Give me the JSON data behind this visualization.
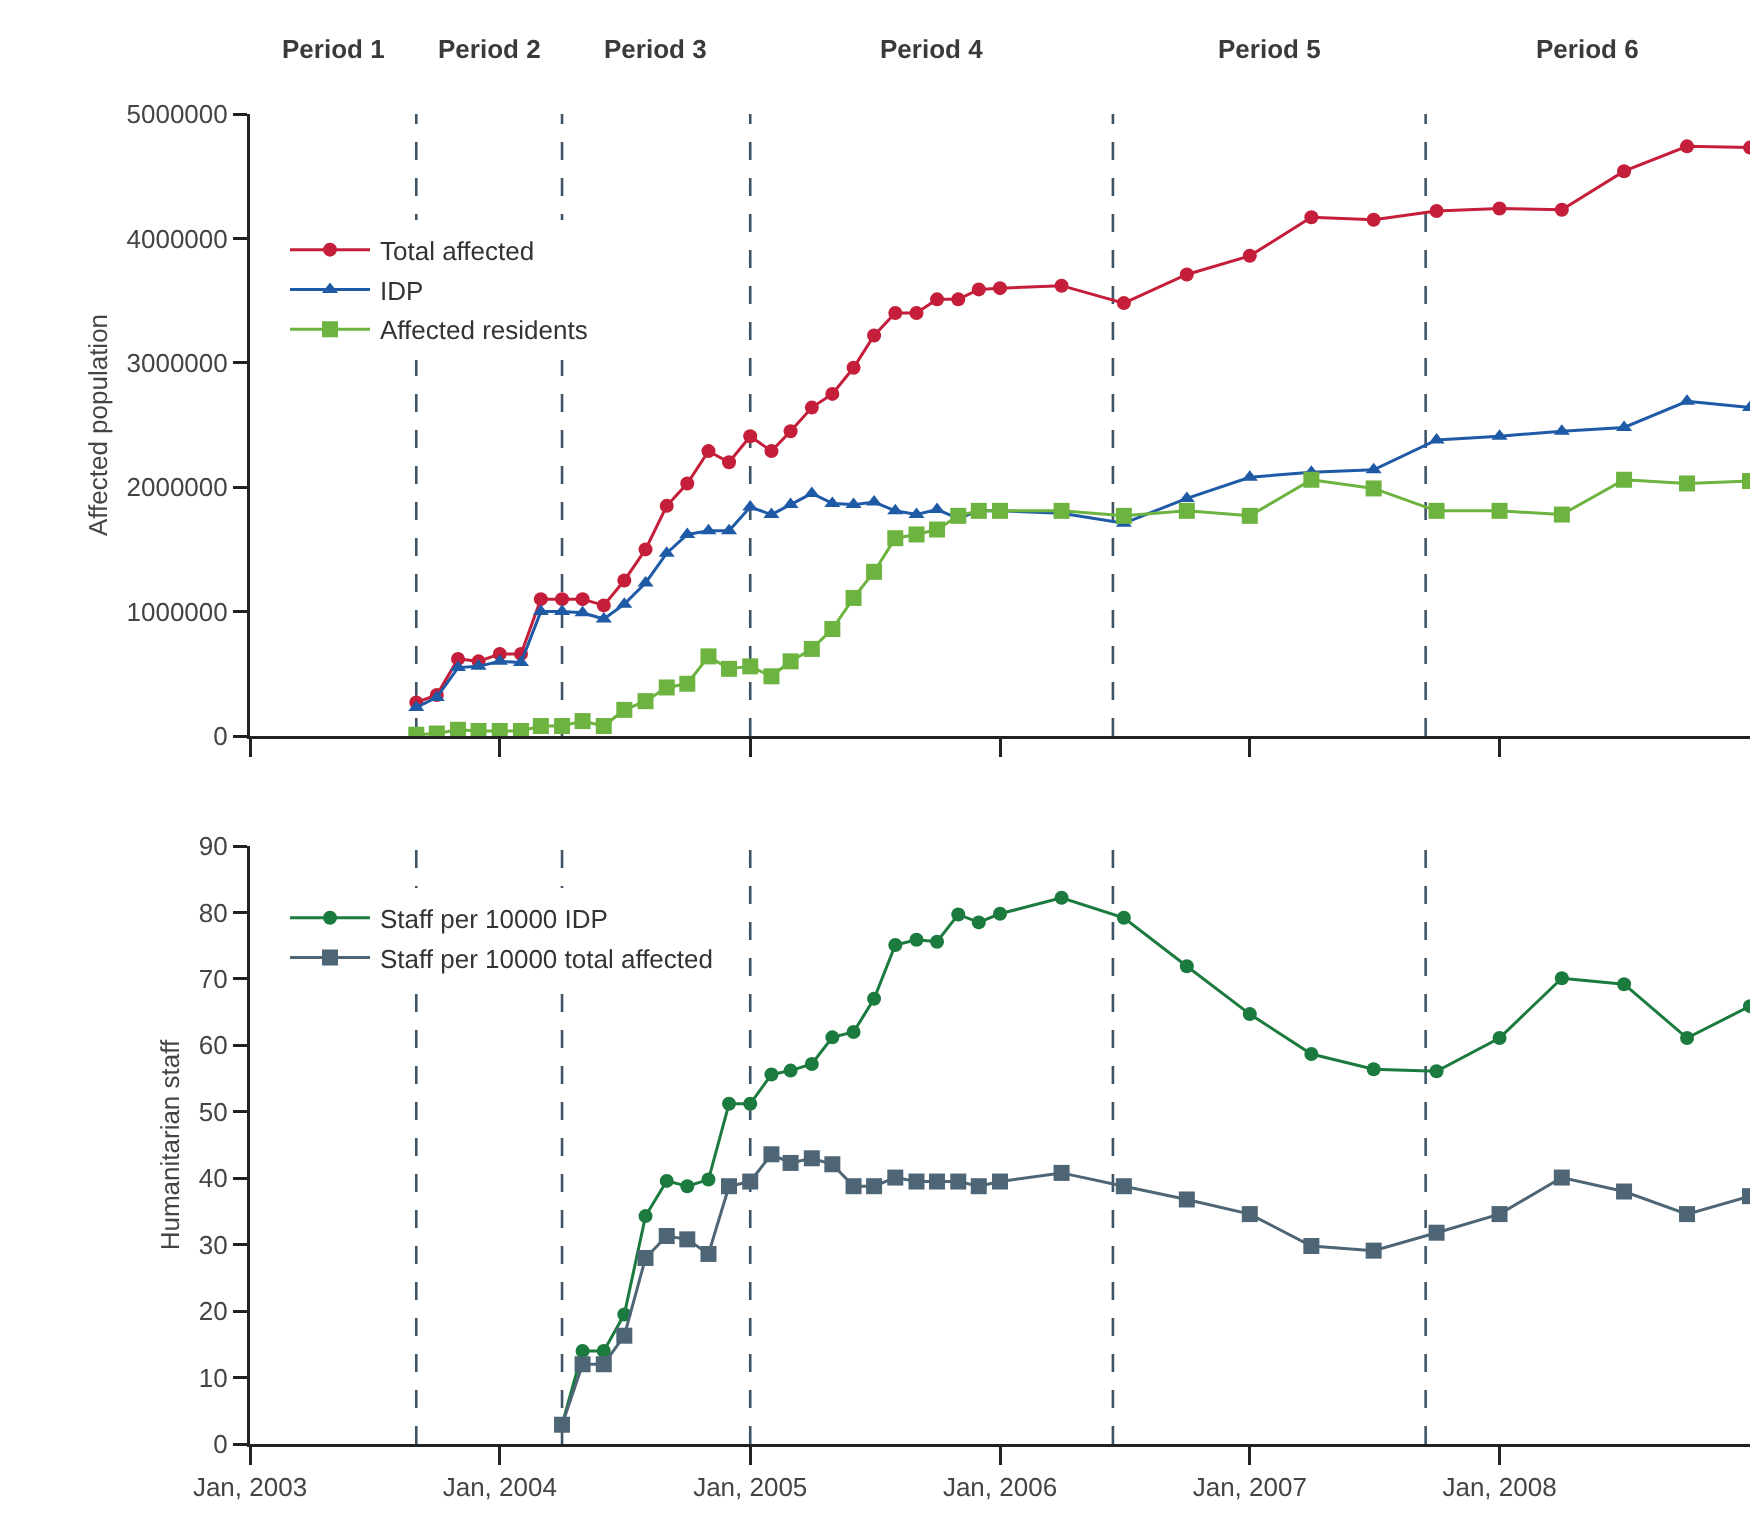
{
  "chart_data": [
    {
      "type": "line",
      "ylabel": "Affected population",
      "annotations": [
        "Period 1",
        "Period 2",
        "Period 3",
        "Period 4",
        "Period 5",
        "Period 6"
      ],
      "x": [
        "2003-09",
        "2003-10",
        "2003-11",
        "2003-12",
        "2004-01",
        "2004-02",
        "2004-03",
        "2004-04",
        "2004-05",
        "2004-06",
        "2004-07",
        "2004-08",
        "2004-09",
        "2004-10",
        "2004-11",
        "2004-12",
        "2005-01",
        "2005-02",
        "2005-03",
        "2005-04",
        "2005-05",
        "2005-06",
        "2005-07",
        "2005-08",
        "2005-09",
        "2005-10",
        "2005-11",
        "2005-12",
        "2006-01",
        "2006-04",
        "2006-07",
        "2006-10",
        "2007-01",
        "2007-04",
        "2007-07",
        "2007-10",
        "2008-01",
        "2008-04",
        "2008-07",
        "2008-10",
        "2009-01"
      ],
      "series": [
        {
          "name": "Total affected",
          "color": "#c41e3a",
          "marker": "circle",
          "values": [
            270000,
            330000,
            620000,
            600000,
            660000,
            660000,
            1100000,
            1100000,
            1100000,
            1050000,
            1250000,
            1500000,
            1850000,
            2030000,
            2290000,
            2200000,
            2410000,
            2290000,
            2450000,
            2640000,
            2750000,
            2960000,
            3220000,
            3400000,
            3400000,
            3510000,
            3510000,
            3590000,
            3600000,
            3620000,
            3480000,
            3710000,
            3860000,
            4170000,
            4150000,
            4220000,
            4240000,
            4230000,
            4540000,
            4740000,
            4730000
          ]
        },
        {
          "name": "IDP",
          "color": "#1f5aa6",
          "marker": "triangle",
          "values": [
            230000,
            310000,
            550000,
            560000,
            600000,
            590000,
            1000000,
            1000000,
            990000,
            940000,
            1060000,
            1230000,
            1470000,
            1620000,
            1650000,
            1650000,
            1840000,
            1780000,
            1860000,
            1950000,
            1870000,
            1860000,
            1880000,
            1810000,
            1780000,
            1820000,
            1750000,
            1810000,
            1810000,
            1790000,
            1710000,
            1910000,
            2080000,
            2120000,
            2140000,
            2380000,
            2410000,
            2450000,
            2480000,
            2690000,
            2640000
          ]
        },
        {
          "name": "Affected residents",
          "color": "#6cb33f",
          "marker": "square",
          "values": [
            10000,
            20000,
            50000,
            40000,
            40000,
            40000,
            80000,
            80000,
            120000,
            80000,
            210000,
            280000,
            390000,
            420000,
            640000,
            540000,
            560000,
            480000,
            600000,
            700000,
            860000,
            1110000,
            1320000,
            1590000,
            1620000,
            1660000,
            1770000,
            1810000,
            1810000,
            1810000,
            1770000,
            1810000,
            1770000,
            2060000,
            1990000,
            1810000,
            1810000,
            1780000,
            2060000,
            2030000,
            2050000
          ]
        }
      ],
      "xlim": [
        "2003-01-01",
        "2009-01-01"
      ],
      "xticks": [
        {
          "value": "2003-01-01",
          "label": null
        },
        {
          "value": "2004-01-01",
          "label": null
        },
        {
          "value": "2005-01-01",
          "label": null
        },
        {
          "value": "2006-01-01",
          "label": null
        },
        {
          "value": "2007-01-01",
          "label": null
        },
        {
          "value": "2008-01-01",
          "label": null
        }
      ],
      "ylim": [
        0,
        5000000
      ],
      "yticks": [
        0,
        1000000,
        2000000,
        3000000,
        4000000,
        5000000
      ],
      "tick_labels": "y",
      "legend": "top left",
      "ref_lines": [
        {
          "axis": "x",
          "value": "2003-09-01",
          "color": "#3f5566",
          "line_style": "dashed"
        },
        {
          "axis": "x",
          "value": "2004-04-01",
          "color": "#3f5566",
          "line_style": "dashed"
        },
        {
          "axis": "x",
          "value": "2005-01-01",
          "color": "#3f5566",
          "line_style": "dashed"
        },
        {
          "axis": "x",
          "value": "2006-06-15",
          "color": "#3f5566",
          "line_style": "dashed"
        },
        {
          "axis": "x",
          "value": "2007-09-15",
          "color": "#3f5566",
          "line_style": "dashed"
        }
      ]
    },
    {
      "type": "line",
      "ylabel": "Humanitarian staff",
      "x": [
        "2004-04",
        "2004-05",
        "2004-06",
        "2004-07",
        "2004-08",
        "2004-09",
        "2004-10",
        "2004-11",
        "2004-12",
        "2005-01",
        "2005-02",
        "2005-03",
        "2005-04",
        "2005-05",
        "2005-06",
        "2005-07",
        "2005-08",
        "2005-09",
        "2005-10",
        "2005-11",
        "2005-12",
        "2006-01",
        "2006-04",
        "2006-07",
        "2006-10",
        "2007-01",
        "2007-04",
        "2007-07",
        "2007-10",
        "2008-01",
        "2008-04",
        "2008-07",
        "2008-10",
        "2009-01"
      ],
      "series": [
        {
          "name": "Staff per 10000 IDP",
          "color": "#1b7a3e",
          "marker": "circle",
          "values": [
            2.9,
            14,
            14,
            19.5,
            34.3,
            39.6,
            38.8,
            39.8,
            51.2,
            51.2,
            55.6,
            56.2,
            57.2,
            61.2,
            62,
            67,
            75.1,
            75.9,
            75.6,
            79.7,
            78.5,
            79.8,
            82.2,
            79.2,
            71.9,
            64.7,
            58.7,
            56.4,
            56.1,
            61.1,
            70.1,
            69.2,
            61.1,
            65.9
          ]
        },
        {
          "name": "Staff per 10000 total affected",
          "color": "#4d6575",
          "marker": "square",
          "values": [
            2.9,
            12,
            12,
            16.3,
            28,
            31.3,
            30.8,
            28.6,
            38.8,
            39.5,
            43.6,
            42.3,
            43,
            42.1,
            38.8,
            38.8,
            40.1,
            39.5,
            39.5,
            39.5,
            38.8,
            39.5,
            40.8,
            38.8,
            36.8,
            34.6,
            29.8,
            29.1,
            31.8,
            34.6,
            40.1,
            38,
            34.6,
            37.3
          ]
        }
      ],
      "xlim": [
        "2003-01-01",
        "2009-01-01"
      ],
      "xticks": [
        {
          "value": "2003-01-01",
          "label": "Jan, 2003"
        },
        {
          "value": "2004-01-01",
          "label": "Jan, 2004"
        },
        {
          "value": "2005-01-01",
          "label": "Jan, 2005"
        },
        {
          "value": "2006-01-01",
          "label": "Jan, 2006"
        },
        {
          "value": "2007-01-01",
          "label": "Jan, 2007"
        },
        {
          "value": "2008-01-01",
          "label": "Jan, 2008"
        }
      ],
      "ylim": [
        0,
        90
      ],
      "yticks": [
        0,
        10,
        20,
        30,
        40,
        50,
        60,
        70,
        80,
        90
      ],
      "legend": "top left",
      "ref_lines": [
        {
          "axis": "x",
          "value": "2003-09-01",
          "color": "#3f5566",
          "line_style": "dashed"
        },
        {
          "axis": "x",
          "value": "2004-04-01",
          "color": "#3f5566",
          "line_style": "dashed"
        },
        {
          "axis": "x",
          "value": "2005-01-01",
          "color": "#3f5566",
          "line_style": "dashed"
        },
        {
          "axis": "x",
          "value": "2006-06-15",
          "color": "#3f5566",
          "line_style": "dashed"
        },
        {
          "axis": "x",
          "value": "2007-09-15",
          "color": "#3f5566",
          "line_style": "dashed"
        }
      ]
    }
  ]
}
